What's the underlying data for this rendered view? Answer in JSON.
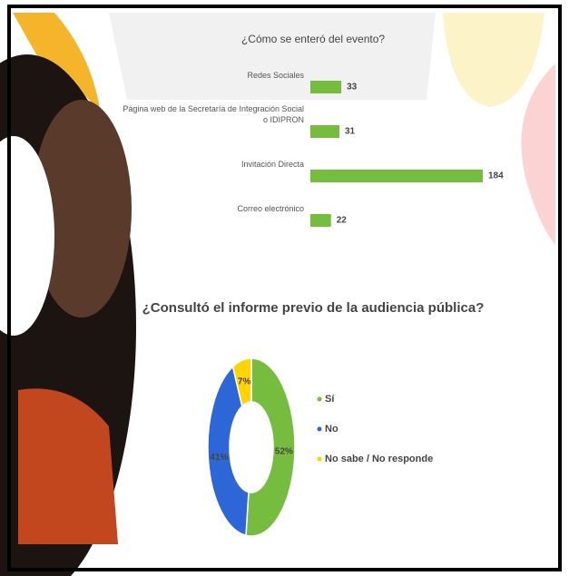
{
  "chart_data": [
    {
      "type": "bar",
      "orientation": "horizontal",
      "title": "¿Cómo se enteró del evento?",
      "categories": [
        "Redes Sociales",
        "Página web de la Secretaría de Integración Social o IDIPRON",
        "Invitación Directa",
        "Correo electrónico"
      ],
      "values": [
        33,
        31,
        184,
        22
      ],
      "color": "#76bd3f"
    },
    {
      "type": "donut",
      "title": "¿Consultó el informe previo de la audiencia pública?",
      "categories": [
        "Sí",
        "No",
        "No sabe / No responde"
      ],
      "values": [
        52,
        41,
        7
      ],
      "value_labels": [
        "52%",
        "41%",
        "7%"
      ],
      "colors": [
        "#76bd3f",
        "#2d66d6",
        "#ffd400"
      ],
      "legend": "right"
    }
  ]
}
